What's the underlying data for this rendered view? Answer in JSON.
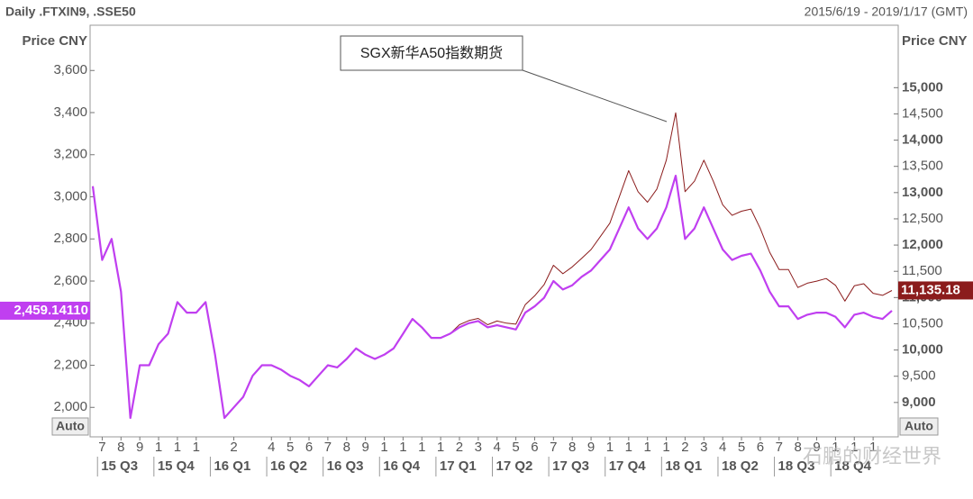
{
  "chart_data": {
    "type": "line",
    "title": "Daily .FTXIN9, .SSE50",
    "subtitle": "2015/6/19 - 2019/1/17 (GMT)",
    "y_label": "Price CNY",
    "y2_label": "Price CNY",
    "scale_mode": "Auto",
    "annotation": "SGX新华A50指数期货",
    "watermark": "石鹏的财经世界",
    "categories": [
      null,
      "7",
      null,
      "8",
      null,
      "9",
      null,
      "1",
      null,
      "1",
      null,
      "1",
      null,
      null,
      null,
      "2",
      null,
      null,
      null,
      "4",
      null,
      "5",
      null,
      "6",
      null,
      "7",
      null,
      "8",
      null,
      "9",
      null,
      "1",
      null,
      "1",
      null,
      "1",
      null,
      "1",
      null,
      "2",
      null,
      "3",
      null,
      "4",
      null,
      "5",
      null,
      "6",
      null,
      "7",
      null,
      "8",
      null,
      "9",
      null,
      "1",
      null,
      "1",
      null,
      "1",
      null,
      "1",
      null,
      "2",
      null,
      "3",
      null,
      "4",
      null,
      "5",
      null,
      "6",
      null,
      "7",
      null,
      "8",
      null,
      "9",
      null,
      "1",
      null,
      "1",
      null,
      "1",
      null,
      null
    ],
    "quarters": [
      "15 Q3",
      "15 Q4",
      "16 Q1",
      "16 Q2",
      "16 Q3",
      "16 Q4",
      "17 Q1",
      "17 Q2",
      "17 Q3",
      "17 Q4",
      "18 Q1",
      "18 Q2",
      "18 Q3",
      "18 Q4"
    ],
    "series": [
      {
        "color": "#c03ff0",
        "axis": "y",
        "values": [
          3050,
          2700,
          2800,
          2550,
          1950,
          2200,
          2200,
          2300,
          2350,
          2500,
          2450,
          2450,
          2500,
          2250,
          1950,
          2000,
          2050,
          2150,
          2200,
          2200,
          2180,
          2150,
          2130,
          2100,
          2150,
          2200,
          2190,
          2230,
          2280,
          2250,
          2230,
          2250,
          2280,
          2350,
          2420,
          2380,
          2330,
          2330,
          2350,
          2380,
          2400,
          2410,
          2380,
          2390,
          2380,
          2370,
          2450,
          2480,
          2520,
          2600,
          2560,
          2580,
          2620,
          2650,
          2700,
          2750,
          2850,
          2950,
          2850,
          2800,
          2850,
          2950,
          3100,
          2800,
          2850,
          2950,
          2850,
          2750,
          2700,
          2720,
          2730,
          2650,
          2550,
          2480,
          2480,
          2420,
          2440,
          2450,
          2450,
          2430,
          2380,
          2440,
          2450,
          2430,
          2420,
          2459.1411
        ],
        "value_labels": [
          null,
          null,
          null,
          null,
          null,
          null,
          null,
          null,
          null,
          null,
          null,
          null,
          null,
          null,
          null,
          null,
          null,
          null,
          null,
          null,
          null,
          null,
          null,
          null,
          null,
          null,
          null,
          null,
          null,
          null,
          null,
          null,
          null,
          null,
          null,
          null,
          null,
          null,
          null,
          null,
          null,
          null,
          null,
          null,
          null,
          null,
          null,
          null,
          null,
          null,
          null,
          null,
          null,
          null,
          null,
          null,
          null,
          null,
          null,
          null,
          null,
          null,
          null,
          null,
          null,
          null,
          null,
          null,
          null,
          null,
          null,
          null,
          null,
          null,
          null,
          null,
          null,
          null,
          null,
          null,
          null,
          null,
          null,
          null,
          null,
          "2,459.14110"
        ]
      },
      {
        "color": "#8b1c1c",
        "axis": "y2",
        "values": [
          13120,
          11716,
          12117,
          11114,
          8706,
          9709,
          9709,
          10111,
          10311,
          10913,
          10713,
          10713,
          10913,
          9910,
          8706,
          8907,
          9107,
          9509,
          9709,
          9709,
          9629,
          9509,
          9429,
          9308,
          9509,
          9709,
          9669,
          9830,
          10030,
          9910,
          9830,
          9910,
          10030,
          10311,
          10592,
          10432,
          10231,
          10231,
          10311,
          10482,
          10562,
          10602,
          10482,
          10552,
          10512,
          10492,
          10863,
          11033,
          11244,
          11615,
          11454,
          11584,
          11745,
          11915,
          12166,
          12417,
          12918,
          13419,
          13018,
          12817,
          13068,
          13619,
          14521,
          13017,
          13218,
          13619,
          13218,
          12767,
          12566,
          12646,
          12686,
          12315,
          11864,
          11533,
          11533,
          11192,
          11273,
          11313,
          11363,
          11232,
          10932,
          11223,
          11263,
          11082,
          11042,
          11135.18
        ],
        "value_labels": [
          null,
          null,
          null,
          null,
          null,
          null,
          null,
          null,
          null,
          null,
          null,
          null,
          null,
          null,
          null,
          null,
          null,
          null,
          null,
          null,
          null,
          null,
          null,
          null,
          null,
          null,
          null,
          null,
          null,
          null,
          null,
          null,
          null,
          null,
          null,
          null,
          null,
          null,
          null,
          null,
          null,
          null,
          null,
          null,
          null,
          null,
          null,
          null,
          null,
          null,
          null,
          null,
          null,
          null,
          null,
          null,
          null,
          null,
          null,
          null,
          null,
          null,
          null,
          null,
          null,
          null,
          null,
          null,
          null,
          null,
          null,
          null,
          null,
          null,
          null,
          null,
          null,
          null,
          null,
          null,
          null,
          null,
          null,
          null,
          null,
          "11,135.18"
        ]
      }
    ],
    "ylim": [
      1860,
      3815
    ],
    "yticks": [
      {
        "value": 2000,
        "label": "2,000"
      },
      {
        "value": 2200,
        "label": "2,200"
      },
      {
        "value": 2400,
        "label": "2,400"
      },
      {
        "value": 2600,
        "label": "2,600"
      },
      {
        "value": 2800,
        "label": "2,800"
      },
      {
        "value": 3000,
        "label": "3,000"
      },
      {
        "value": 3200,
        "label": "3,200"
      },
      {
        "value": 3400,
        "label": "3,400"
      },
      {
        "value": 3600,
        "label": "3,600"
      }
    ],
    "y2lim": [
      8345,
      16190
    ],
    "y2ticks": [
      {
        "value": 9000,
        "label": "9,000"
      },
      {
        "value": 9500,
        "label": "9,500"
      },
      {
        "value": 10000,
        "label": "10,000"
      },
      {
        "value": 10500,
        "label": "10,500"
      },
      {
        "value": 11000,
        "label": "11,000"
      },
      {
        "value": 11500,
        "label": "11,500"
      },
      {
        "value": 12000,
        "label": "12,000"
      },
      {
        "value": 12500,
        "label": "12,500"
      },
      {
        "value": 13000,
        "label": "13,000"
      },
      {
        "value": 13500,
        "label": "13,500"
      },
      {
        "value": 14000,
        "label": "14,000"
      },
      {
        "value": 14500,
        "label": "14,500"
      },
      {
        "value": 15000,
        "label": "15,000"
      }
    ],
    "grid": false
  }
}
